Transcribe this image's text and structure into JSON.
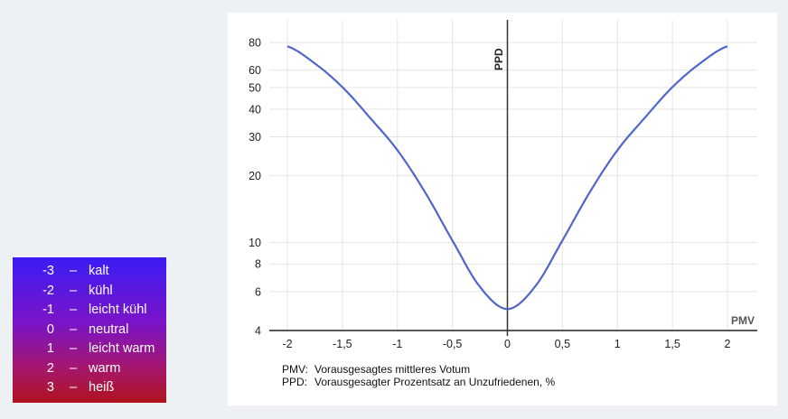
{
  "legend": {
    "items": [
      {
        "value": "-3",
        "dash": "–",
        "label": "kalt"
      },
      {
        "value": "-2",
        "dash": "–",
        "label": "kühl"
      },
      {
        "value": "-1",
        "dash": "–",
        "label": "leicht kühl"
      },
      {
        "value": "0",
        "dash": "–",
        "label": "neutral"
      },
      {
        "value": "1",
        "dash": "–",
        "label": "leicht warm"
      },
      {
        "value": "2",
        "dash": "–",
        "label": "warm"
      },
      {
        "value": "3",
        "dash": "–",
        "label": "heiß"
      }
    ],
    "gradient_top": "#3a1cf4",
    "gradient_bottom": "#b0141c"
  },
  "captions": [
    {
      "key": "PMV:",
      "text": "Vorausgesagtes mittleres Votum"
    },
    {
      "key": "PPD:",
      "text": "Vorausgesagter Prozentsatz an Unzufriedenen, %"
    }
  ],
  "colors": {
    "curve": "#5066c8",
    "grid": "#e4e4e4",
    "axis": "#222222",
    "background": "#eef1f4",
    "panel": "#ffffff"
  },
  "chart_data": {
    "type": "line",
    "title": "",
    "xlabel": "PMV",
    "ylabel": "PPD",
    "xlim": [
      -2,
      2
    ],
    "ylim": [
      4,
      80
    ],
    "yscale": "log",
    "grid": true,
    "x_ticks": [
      "-2",
      "-1,5",
      "-1",
      "-0,5",
      "0",
      "0,5",
      "1",
      "1,5",
      "2"
    ],
    "x_tick_values": [
      -2,
      -1.5,
      -1,
      -0.5,
      0,
      0.5,
      1,
      1.5,
      2
    ],
    "y_ticks": [
      "80",
      "60",
      "50",
      "40",
      "30",
      "20",
      "10",
      "8",
      "6",
      "4"
    ],
    "y_tick_values": [
      80,
      60,
      50,
      40,
      30,
      20,
      10,
      8,
      6,
      4
    ],
    "series": [
      {
        "name": "PPD",
        "x": [
          -2,
          -1.75,
          -1.5,
          -1.25,
          -1,
          -0.75,
          -0.5,
          -0.25,
          0,
          0.25,
          0.5,
          0.75,
          1,
          1.25,
          1.5,
          1.75,
          2
        ],
        "values": [
          76.8,
          64.3,
          50.3,
          36.6,
          26.1,
          16.9,
          10.2,
          6.3,
          5.0,
          6.3,
          10.2,
          16.9,
          26.1,
          36.6,
          50.3,
          64.3,
          76.8
        ]
      }
    ]
  }
}
